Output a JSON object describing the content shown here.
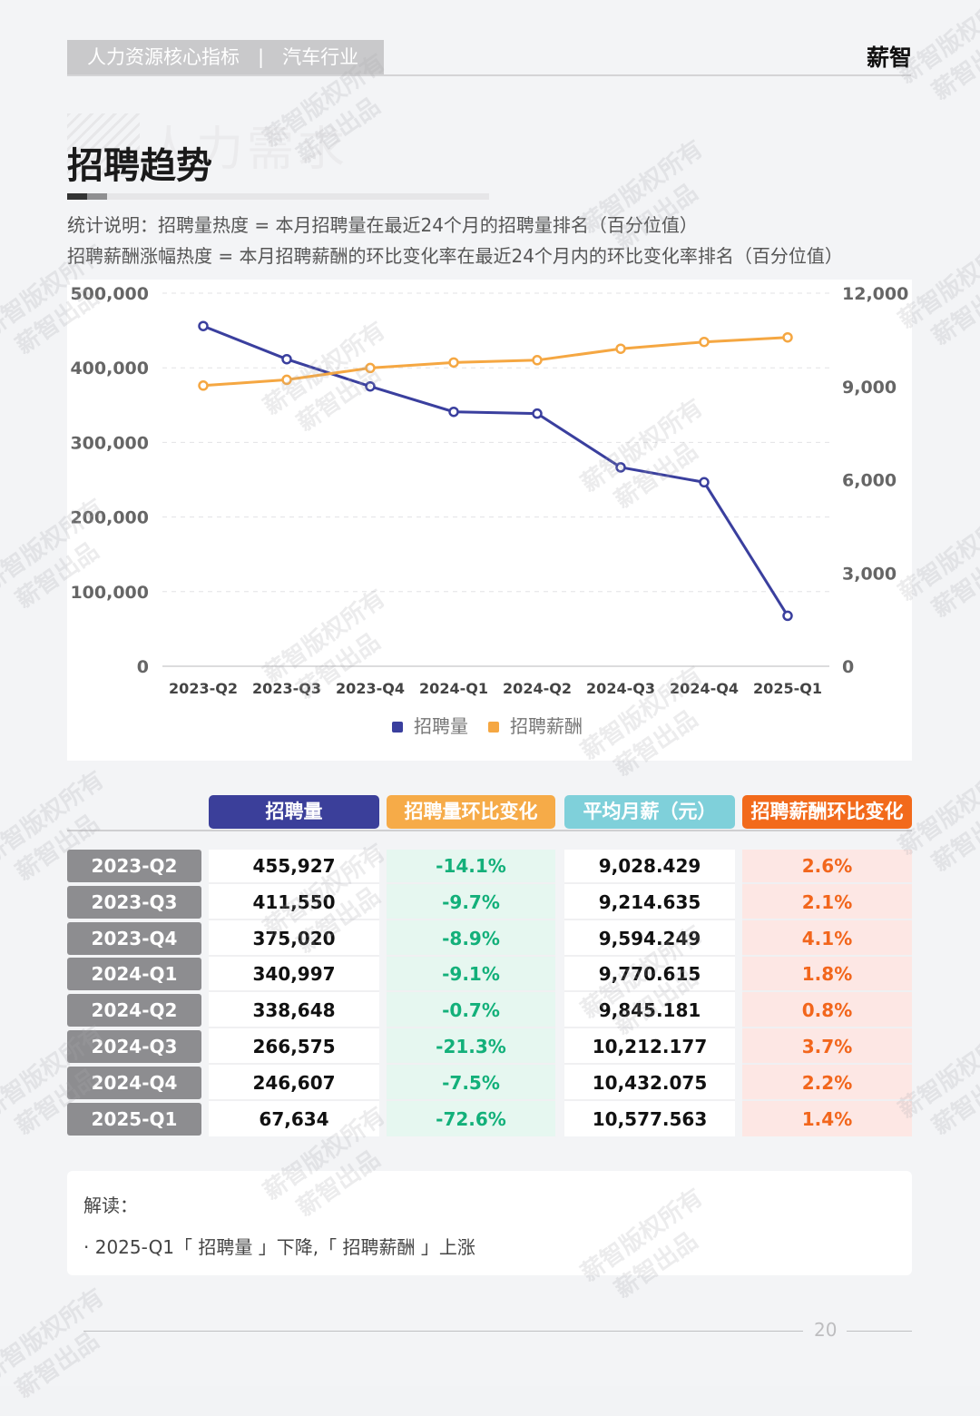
{
  "header": {
    "category": "人力资源核心指标",
    "separator": "|",
    "industry": "汽车行业",
    "brand": "薪智"
  },
  "section": {
    "ghost_text": "人力需求",
    "title": "招聘趋势",
    "note1": "统计说明：招聘量热度 = 本月招聘量在最近24个月的招聘量排名（百分位值）",
    "note2": "招聘薪酬涨幅热度 = 本月招聘薪酬的环比变化率在最近24个月内的环比变化率排名（百分位值）"
  },
  "chart_data": {
    "type": "line",
    "categories": [
      "2023-Q2",
      "2023-Q3",
      "2023-Q4",
      "2024-Q1",
      "2024-Q2",
      "2024-Q3",
      "2024-Q4",
      "2025-Q1"
    ],
    "series": [
      {
        "name": "招聘量",
        "axis": "left",
        "color": "#3a3f9e",
        "values": [
          455927,
          411550,
          375020,
          340997,
          338648,
          266575,
          246607,
          67634
        ]
      },
      {
        "name": "招聘薪酬",
        "axis": "right",
        "color": "#f5a742",
        "values": [
          9028.429,
          9214.635,
          9594.249,
          9770.615,
          9845.181,
          10212.177,
          10432.075,
          10577.563
        ]
      }
    ],
    "y_left": {
      "ticks": [
        "500,000",
        "400,000",
        "300,000",
        "200,000",
        "100,000",
        "0"
      ],
      "min": 0,
      "max": 500000
    },
    "y_right": {
      "ticks": [
        "12,000",
        "9,000",
        "6,000",
        "3,000",
        "0"
      ],
      "min": 0,
      "max": 12000
    },
    "grid": true,
    "legend": "bottom-center"
  },
  "table": {
    "headers": [
      {
        "label": "招聘量",
        "color": "#3b3f9a"
      },
      {
        "label": "招聘量环比变化",
        "color": "#f6ab48"
      },
      {
        "label": "平均月薪（元）",
        "color": "#7fd0da"
      },
      {
        "label": "招聘薪酬环比变化",
        "color": "#f26a1b"
      }
    ],
    "rows": [
      {
        "quarter": "2023-Q2",
        "volume": "455,927",
        "volume_change": "-14.1%",
        "salary": "9,028.429",
        "salary_change": "2.6%"
      },
      {
        "quarter": "2023-Q3",
        "volume": "411,550",
        "volume_change": "-9.7%",
        "salary": "9,214.635",
        "salary_change": "2.1%"
      },
      {
        "quarter": "2023-Q4",
        "volume": "375,020",
        "volume_change": "-8.9%",
        "salary": "9,594.249",
        "salary_change": "4.1%"
      },
      {
        "quarter": "2024-Q1",
        "volume": "340,997",
        "volume_change": "-9.1%",
        "salary": "9,770.615",
        "salary_change": "1.8%"
      },
      {
        "quarter": "2024-Q2",
        "volume": "338,648",
        "volume_change": "-0.7%",
        "salary": "9,845.181",
        "salary_change": "0.8%"
      },
      {
        "quarter": "2024-Q3",
        "volume": "266,575",
        "volume_change": "-21.3%",
        "salary": "10,212.177",
        "salary_change": "3.7%"
      },
      {
        "quarter": "2024-Q4",
        "volume": "246,607",
        "volume_change": "-7.5%",
        "salary": "10,432.075",
        "salary_change": "2.2%"
      },
      {
        "quarter": "2025-Q1",
        "volume": "67,634",
        "volume_change": "-72.6%",
        "salary": "10,577.563",
        "salary_change": "1.4%"
      }
    ]
  },
  "interpretation": {
    "heading": "解读：",
    "bullet": "· 2025-Q1「 招聘量 」下降,「 招聘薪酬 」上涨"
  },
  "footer": {
    "page_number": "20"
  },
  "watermark": {
    "line1": "薪智版权所有",
    "line2": "薪智出品"
  }
}
